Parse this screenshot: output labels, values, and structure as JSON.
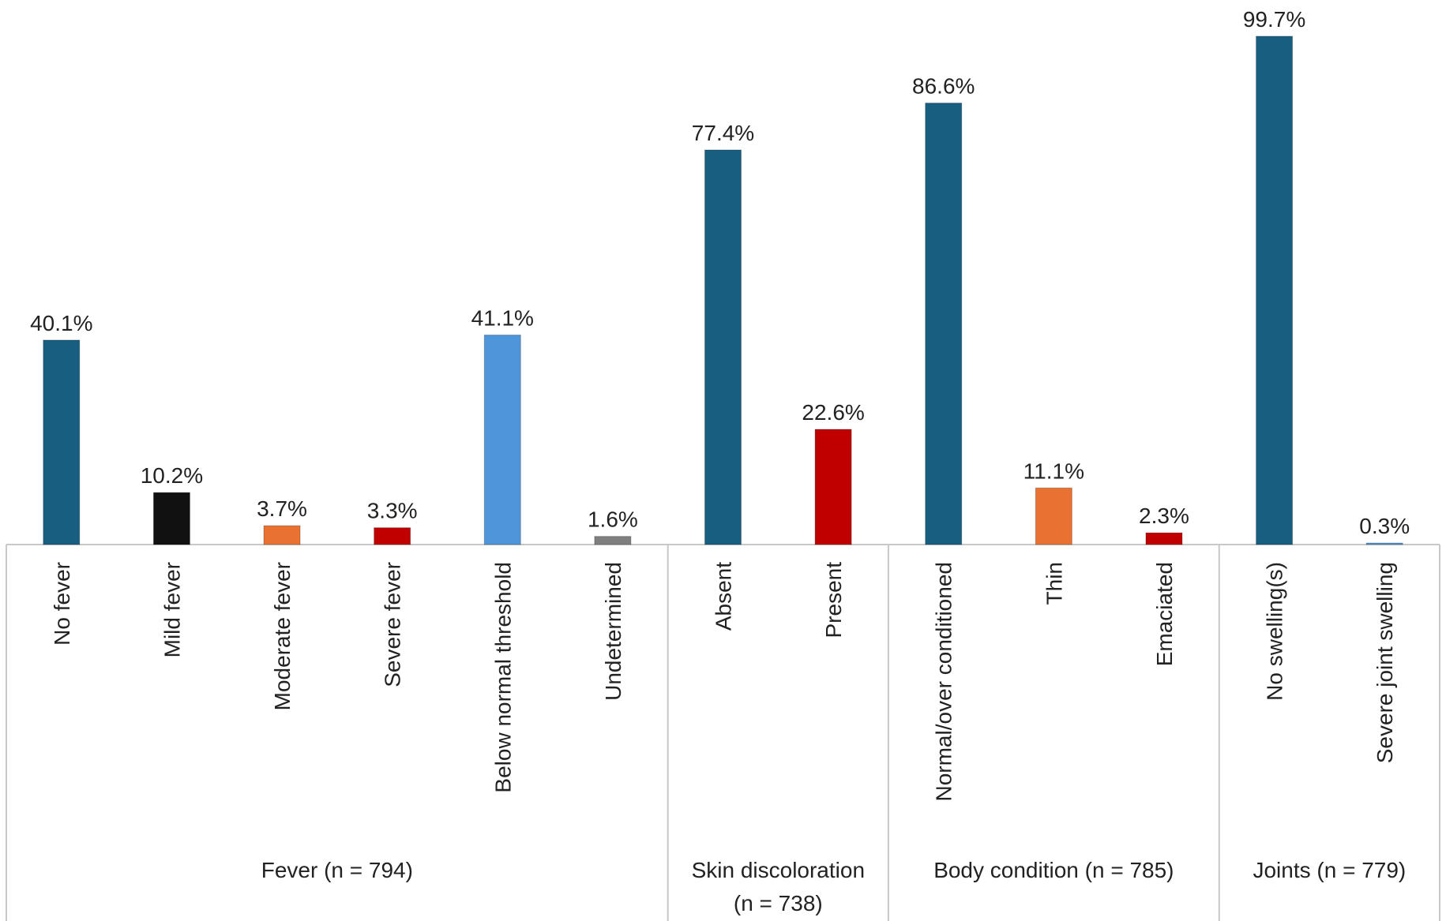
{
  "chart_data": {
    "type": "bar",
    "title": "",
    "xlabel": "",
    "ylabel": "",
    "ylim": [
      0,
      100
    ],
    "grid": false,
    "value_format": "percent_one_decimal",
    "categories": [
      {
        "label": "No fever",
        "value": 40.1,
        "display": "40.1%",
        "color": "#175e80",
        "group": 0
      },
      {
        "label": "Mild fever",
        "value": 10.2,
        "display": "10.2%",
        "color": "#111111",
        "group": 0
      },
      {
        "label": "Moderate fever",
        "value": 3.7,
        "display": "3.7%",
        "color": "#e97132",
        "group": 0
      },
      {
        "label": "Severe fever",
        "value": 3.3,
        "display": "3.3%",
        "color": "#c00000",
        "group": 0
      },
      {
        "label": "Below normal threshold",
        "value": 41.1,
        "display": "41.1%",
        "color": "#4e95d9",
        "group": 0
      },
      {
        "label": "Undetermined",
        "value": 1.6,
        "display": "1.6%",
        "color": "#7f7f7f",
        "group": 0
      },
      {
        "label": "Absent",
        "value": 77.4,
        "display": "77.4%",
        "color": "#175e80",
        "group": 1
      },
      {
        "label": "Present",
        "value": 22.6,
        "display": "22.6%",
        "color": "#c00000",
        "group": 1
      },
      {
        "label": "Normal/over conditioned",
        "value": 86.6,
        "display": "86.6%",
        "color": "#175e80",
        "group": 2
      },
      {
        "label": "Thin",
        "value": 11.1,
        "display": "11.1%",
        "color": "#e97132",
        "group": 2
      },
      {
        "label": "Emaciated",
        "value": 2.3,
        "display": "2.3%",
        "color": "#c00000",
        "group": 2
      },
      {
        "label": "No swelling(s)",
        "value": 99.7,
        "display": "99.7%",
        "color": "#175e80",
        "group": 3
      },
      {
        "label": "Severe joint swelling",
        "value": 0.3,
        "display": "0.3%",
        "color": "#4e95d9",
        "group": 3
      }
    ],
    "groups": [
      {
        "lines": [
          "Fever (n = 794)"
        ]
      },
      {
        "lines": [
          "Skin discoloration",
          "(n = 738)"
        ]
      },
      {
        "lines": [
          "Body condition (n = 785)"
        ]
      },
      {
        "lines": [
          "Joints (n = 779)"
        ]
      }
    ]
  }
}
